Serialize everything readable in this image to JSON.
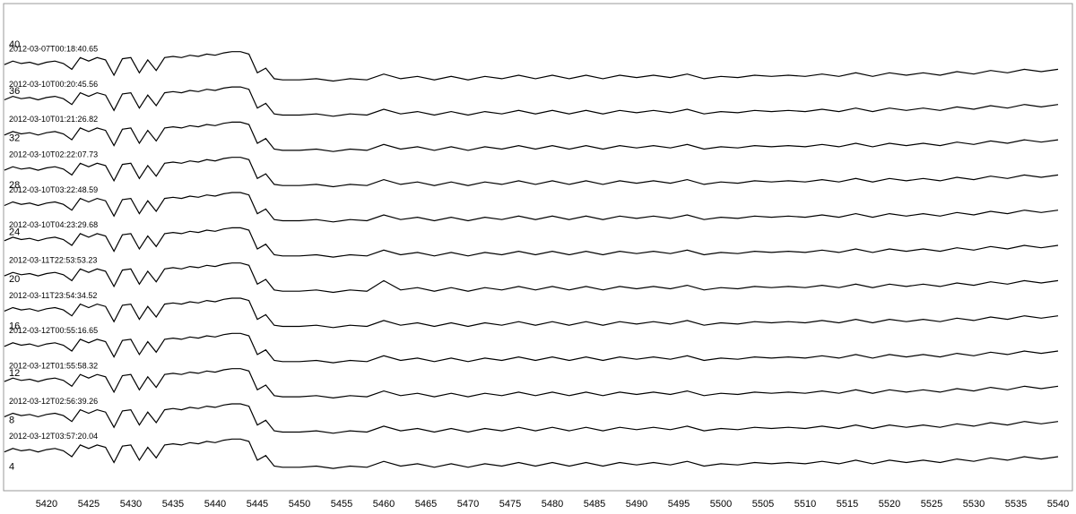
{
  "chart_data": {
    "type": "line",
    "x": [
      5415,
      5416,
      5417,
      5418,
      5419,
      5420,
      5421,
      5422,
      5423,
      5424,
      5425,
      5426,
      5427,
      5428,
      5429,
      5430,
      5431,
      5432,
      5433,
      5434,
      5435,
      5436,
      5437,
      5438,
      5439,
      5440,
      5441,
      5442,
      5443,
      5444,
      5445,
      5446,
      5447,
      5448,
      5450,
      5452,
      5454,
      5456,
      5458,
      5460,
      5462,
      5464,
      5466,
      5468,
      5470,
      5472,
      5474,
      5476,
      5478,
      5480,
      5482,
      5484,
      5486,
      5488,
      5490,
      5492,
      5494,
      5496,
      5498,
      5500,
      5502,
      5504,
      5506,
      5508,
      5510,
      5512,
      5514,
      5516,
      5518,
      5520,
      5522,
      5524,
      5526,
      5528,
      5530,
      5532,
      5534,
      5536,
      5538,
      5540
    ],
    "xlim": [
      5414.9,
      5541.7
    ],
    "xticks": [
      5420,
      5425,
      5430,
      5435,
      5440,
      5445,
      5450,
      5455,
      5460,
      5465,
      5470,
      5475,
      5480,
      5485,
      5490,
      5495,
      5500,
      5505,
      5510,
      5515,
      5520,
      5525,
      5530,
      5535,
      5540
    ],
    "ylim": [
      2.0,
      43.5
    ],
    "yticks": [
      4,
      8,
      12,
      16,
      20,
      24,
      28,
      32,
      36,
      40
    ],
    "series": [
      {
        "name": "2012-03-07T00:18:40.65",
        "color": "#000000",
        "values": [
          38.3,
          38.6,
          38.4,
          38.5,
          38.3,
          38.5,
          38.6,
          38.4,
          37.9,
          38.9,
          38.6,
          38.9,
          38.7,
          37.4,
          38.8,
          38.9,
          37.6,
          38.7,
          37.8,
          38.9,
          39,
          38.9,
          39.1,
          39,
          39.2,
          39.1,
          39.3,
          39.4,
          39.4,
          39.2,
          37.6,
          38,
          37.1,
          37,
          37,
          37.1,
          36.9,
          37.1,
          37,
          37.5,
          37.1,
          37.3,
          37,
          37.3,
          37,
          37.3,
          37.1,
          37.4,
          37.1,
          37.4,
          37.1,
          37.4,
          37.1,
          37.4,
          37.2,
          37.4,
          37.2,
          37.5,
          37.1,
          37.3,
          37.2,
          37.4,
          37.3,
          37.4,
          37.3,
          37.5,
          37.3,
          37.6,
          37.3,
          37.6,
          37.4,
          37.6,
          37.4,
          37.7,
          37.5,
          37.8,
          37.6,
          37.9,
          37.7,
          37.9
        ]
      },
      {
        "name": "2012-03-10T00:20:45.56",
        "color": "#000000",
        "values": [
          35.3,
          35.6,
          35.4,
          35.5,
          35.3,
          35.5,
          35.6,
          35.4,
          34.9,
          35.9,
          35.6,
          35.9,
          35.7,
          34.4,
          35.8,
          35.9,
          34.6,
          35.7,
          34.8,
          35.9,
          36,
          35.9,
          36.1,
          36,
          36.2,
          36.1,
          36.3,
          36.4,
          36.4,
          36.2,
          34.6,
          35,
          34.1,
          34,
          34,
          34.1,
          33.9,
          34.1,
          34,
          34.5,
          34.1,
          34.3,
          34,
          34.3,
          34,
          34.3,
          34.1,
          34.4,
          34.1,
          34.4,
          34.1,
          34.4,
          34.1,
          34.4,
          34.2,
          34.4,
          34.2,
          34.5,
          34.1,
          34.3,
          34.2,
          34.4,
          34.3,
          34.4,
          34.3,
          34.5,
          34.3,
          34.6,
          34.3,
          34.6,
          34.4,
          34.6,
          34.4,
          34.7,
          34.5,
          34.8,
          34.6,
          34.9,
          34.7,
          34.9
        ]
      },
      {
        "name": "2012-03-10T01:21:26.82",
        "color": "#000000",
        "values": [
          32.3,
          32.6,
          32.4,
          32.5,
          32.3,
          32.5,
          32.6,
          32.4,
          31.9,
          32.9,
          32.6,
          32.9,
          32.7,
          31.4,
          32.8,
          32.9,
          31.6,
          32.7,
          31.8,
          32.9,
          33,
          32.9,
          33.1,
          33,
          33.2,
          33.1,
          33.3,
          33.4,
          33.4,
          33.2,
          31.6,
          32,
          31.1,
          31,
          31,
          31.1,
          30.9,
          31.1,
          31,
          31.5,
          31.1,
          31.3,
          31,
          31.3,
          31,
          31.3,
          31.1,
          31.4,
          31.1,
          31.4,
          31.1,
          31.4,
          31.1,
          31.4,
          31.2,
          31.4,
          31.2,
          31.5,
          31.1,
          31.3,
          31.2,
          31.4,
          31.3,
          31.4,
          31.3,
          31.5,
          31.3,
          31.6,
          31.3,
          31.6,
          31.4,
          31.6,
          31.4,
          31.7,
          31.5,
          31.8,
          31.6,
          31.9,
          31.7,
          31.9
        ]
      },
      {
        "name": "2012-03-10T02:22:07.73",
        "color": "#000000",
        "values": [
          29.3,
          29.6,
          29.4,
          29.5,
          29.3,
          29.5,
          29.6,
          29.4,
          28.9,
          29.9,
          29.6,
          29.9,
          29.7,
          28.4,
          29.8,
          29.9,
          28.6,
          29.7,
          28.8,
          29.9,
          30,
          29.9,
          30.1,
          30,
          30.2,
          30.1,
          30.3,
          30.4,
          30.4,
          30.2,
          28.6,
          29,
          28.1,
          28,
          28,
          28.1,
          27.9,
          28.1,
          28,
          28.5,
          28.1,
          28.3,
          28,
          28.3,
          28,
          28.3,
          28.1,
          28.4,
          28.1,
          28.4,
          28.1,
          28.4,
          28.1,
          28.4,
          28.2,
          28.4,
          28.2,
          28.5,
          28.1,
          28.3,
          28.2,
          28.4,
          28.3,
          28.4,
          28.3,
          28.5,
          28.3,
          28.6,
          28.3,
          28.6,
          28.4,
          28.6,
          28.4,
          28.7,
          28.5,
          28.8,
          28.6,
          28.9,
          28.7,
          28.9
        ]
      },
      {
        "name": "2012-03-10T03:22:48.59",
        "color": "#000000",
        "values": [
          26.3,
          26.6,
          26.4,
          26.5,
          26.3,
          26.5,
          26.6,
          26.4,
          25.9,
          26.9,
          26.6,
          26.9,
          26.7,
          25.4,
          26.8,
          26.9,
          25.6,
          26.7,
          25.8,
          26.9,
          27,
          26.9,
          27.1,
          27,
          27.2,
          27.1,
          27.3,
          27.4,
          27.4,
          27.2,
          25.6,
          26,
          25.1,
          25,
          25,
          25.1,
          24.9,
          25.1,
          25,
          25.5,
          25.1,
          25.3,
          25,
          25.3,
          25,
          25.3,
          25.1,
          25.4,
          25.1,
          25.4,
          25.1,
          25.4,
          25.1,
          25.4,
          25.2,
          25.4,
          25.2,
          25.5,
          25.1,
          25.3,
          25.2,
          25.4,
          25.3,
          25.4,
          25.3,
          25.5,
          25.3,
          25.6,
          25.3,
          25.6,
          25.4,
          25.6,
          25.4,
          25.7,
          25.5,
          25.8,
          25.6,
          25.9,
          25.7,
          25.9
        ]
      },
      {
        "name": "2012-03-10T04:23:29.68",
        "color": "#000000",
        "values": [
          23.3,
          23.6,
          23.4,
          23.5,
          23.3,
          23.5,
          23.6,
          23.4,
          22.9,
          23.9,
          23.6,
          23.9,
          23.7,
          22.4,
          23.8,
          23.9,
          22.6,
          23.7,
          22.8,
          23.9,
          24,
          23.9,
          24.1,
          24,
          24.2,
          24.1,
          24.3,
          24.4,
          24.4,
          24.2,
          22.6,
          23,
          22.1,
          22,
          22,
          22.1,
          21.9,
          22.1,
          22,
          22.5,
          22.1,
          22.3,
          22,
          22.3,
          22,
          22.3,
          22.1,
          22.4,
          22.1,
          22.4,
          22.1,
          22.4,
          22.1,
          22.4,
          22.2,
          22.4,
          22.2,
          22.5,
          22.1,
          22.3,
          22.2,
          22.4,
          22.3,
          22.4,
          22.3,
          22.5,
          22.3,
          22.6,
          22.3,
          22.6,
          22.4,
          22.6,
          22.4,
          22.7,
          22.5,
          22.8,
          22.6,
          22.9,
          22.7,
          22.9
        ]
      },
      {
        "name": "2012-03-11T22:53:53.23",
        "color": "#000000",
        "values": [
          20.3,
          20.6,
          20.4,
          20.5,
          20.3,
          20.5,
          20.6,
          20.4,
          19.9,
          20.9,
          20.6,
          20.9,
          20.7,
          19.4,
          20.8,
          20.9,
          19.6,
          20.7,
          19.8,
          20.9,
          21,
          20.9,
          21.1,
          21,
          21.2,
          21.1,
          21.3,
          21.4,
          21.4,
          21.2,
          19.6,
          20,
          19.1,
          19,
          19,
          19.1,
          18.9,
          19.1,
          19,
          19.9,
          19.1,
          19.3,
          19,
          19.3,
          19,
          19.3,
          19.1,
          19.4,
          19.1,
          19.4,
          19.1,
          19.4,
          19.1,
          19.4,
          19.2,
          19.4,
          19.2,
          19.5,
          19.1,
          19.3,
          19.2,
          19.4,
          19.3,
          19.4,
          19.3,
          19.5,
          19.3,
          19.6,
          19.3,
          19.6,
          19.4,
          19.6,
          19.4,
          19.7,
          19.5,
          19.8,
          19.6,
          19.9,
          19.7,
          19.9
        ]
      },
      {
        "name": "2012-03-11T23:54:34.52",
        "color": "#000000",
        "values": [
          17.3,
          17.6,
          17.4,
          17.5,
          17.3,
          17.5,
          17.6,
          17.4,
          16.9,
          17.9,
          17.6,
          17.9,
          17.7,
          16.4,
          17.8,
          17.9,
          16.6,
          17.7,
          16.8,
          17.9,
          18,
          17.9,
          18.1,
          18,
          18.2,
          18.1,
          18.3,
          18.4,
          18.4,
          18.2,
          16.6,
          17,
          16.1,
          16,
          16,
          16.1,
          15.9,
          16.1,
          16,
          16.5,
          16.1,
          16.3,
          16,
          16.3,
          16,
          16.3,
          16.1,
          16.4,
          16.1,
          16.4,
          16.1,
          16.4,
          16.1,
          16.4,
          16.2,
          16.4,
          16.2,
          16.5,
          16.1,
          16.3,
          16.2,
          16.4,
          16.3,
          16.4,
          16.3,
          16.5,
          16.3,
          16.6,
          16.3,
          16.6,
          16.4,
          16.6,
          16.4,
          16.7,
          16.5,
          16.8,
          16.6,
          16.9,
          16.7,
          16.9
        ]
      },
      {
        "name": "2012-03-12T00:55:16.65",
        "color": "#000000",
        "values": [
          14.3,
          14.6,
          14.4,
          14.5,
          14.3,
          14.5,
          14.6,
          14.4,
          13.9,
          14.9,
          14.6,
          14.9,
          14.7,
          13.4,
          14.8,
          14.9,
          13.6,
          14.7,
          13.8,
          14.9,
          15,
          14.9,
          15.1,
          15,
          15.2,
          15.1,
          15.3,
          15.4,
          15.4,
          15.2,
          13.6,
          14,
          13.1,
          13,
          13,
          13.1,
          12.9,
          13.1,
          13,
          13.5,
          13.1,
          13.3,
          13,
          13.3,
          13,
          13.3,
          13.1,
          13.4,
          13.1,
          13.4,
          13.1,
          13.4,
          13.1,
          13.4,
          13.2,
          13.4,
          13.2,
          13.5,
          13.1,
          13.3,
          13.2,
          13.4,
          13.3,
          13.4,
          13.3,
          13.5,
          13.3,
          13.6,
          13.3,
          13.6,
          13.4,
          13.6,
          13.4,
          13.7,
          13.5,
          13.8,
          13.6,
          13.9,
          13.7,
          13.9
        ]
      },
      {
        "name": "2012-03-12T01:55:58.32",
        "color": "#000000",
        "values": [
          11.3,
          11.6,
          11.4,
          11.5,
          11.3,
          11.5,
          11.6,
          11.4,
          10.9,
          11.9,
          11.6,
          11.9,
          11.7,
          10.4,
          11.8,
          11.9,
          10.6,
          11.7,
          10.8,
          11.9,
          12,
          11.9,
          12.1,
          12,
          12.2,
          12.1,
          12.3,
          12.4,
          12.4,
          12.2,
          10.6,
          11,
          10.1,
          10,
          10,
          10.1,
          9.9,
          10.1,
          10,
          10.5,
          10.1,
          10.3,
          10,
          10.3,
          10,
          10.3,
          10.1,
          10.4,
          10.1,
          10.4,
          10.1,
          10.4,
          10.1,
          10.4,
          10.2,
          10.4,
          10.2,
          10.5,
          10.1,
          10.3,
          10.2,
          10.4,
          10.3,
          10.4,
          10.3,
          10.5,
          10.3,
          10.6,
          10.3,
          10.6,
          10.4,
          10.6,
          10.4,
          10.7,
          10.5,
          10.8,
          10.6,
          10.9,
          10.7,
          10.9
        ]
      },
      {
        "name": "2012-03-12T02:56:39.26",
        "color": "#000000",
        "values": [
          8.3,
          8.6,
          8.4,
          8.5,
          8.3,
          8.5,
          8.6,
          8.4,
          7.9,
          8.9,
          8.6,
          8.9,
          8.7,
          7.4,
          8.8,
          8.9,
          7.6,
          8.7,
          7.8,
          8.9,
          9,
          8.9,
          9.1,
          9,
          9.2,
          9.1,
          9.3,
          9.4,
          9.4,
          9.2,
          7.6,
          8,
          7.1,
          7,
          7,
          7.1,
          6.9,
          7.1,
          7,
          7.5,
          7.1,
          7.3,
          7,
          7.3,
          7,
          7.3,
          7.1,
          7.4,
          7.1,
          7.4,
          7.1,
          7.4,
          7.1,
          7.4,
          7.2,
          7.4,
          7.2,
          7.5,
          7.1,
          7.3,
          7.2,
          7.4,
          7.3,
          7.4,
          7.3,
          7.5,
          7.3,
          7.6,
          7.3,
          7.6,
          7.4,
          7.6,
          7.4,
          7.7,
          7.5,
          7.8,
          7.6,
          7.9,
          7.7,
          7.9
        ]
      },
      {
        "name": "2012-03-12T03:57:20.04",
        "color": "#000000",
        "values": [
          5.3,
          5.6,
          5.4,
          5.5,
          5.3,
          5.5,
          5.6,
          5.4,
          4.9,
          5.9,
          5.6,
          5.9,
          5.7,
          4.4,
          5.8,
          5.9,
          4.6,
          5.7,
          4.8,
          5.9,
          6,
          5.9,
          6.1,
          6,
          6.2,
          6.1,
          6.3,
          6.4,
          6.4,
          6.2,
          4.6,
          5,
          4.1,
          4,
          4,
          4.1,
          3.9,
          4.1,
          4,
          4.5,
          4.1,
          4.3,
          4,
          4.3,
          4,
          4.3,
          4.1,
          4.4,
          4.1,
          4.4,
          4.1,
          4.4,
          4.1,
          4.4,
          4.2,
          4.4,
          4.2,
          4.5,
          4.1,
          4.3,
          4.2,
          4.4,
          4.3,
          4.4,
          4.3,
          4.5,
          4.3,
          4.6,
          4.3,
          4.6,
          4.4,
          4.6,
          4.4,
          4.7,
          4.5,
          4.8,
          4.6,
          4.9,
          4.7,
          4.9
        ]
      }
    ]
  }
}
